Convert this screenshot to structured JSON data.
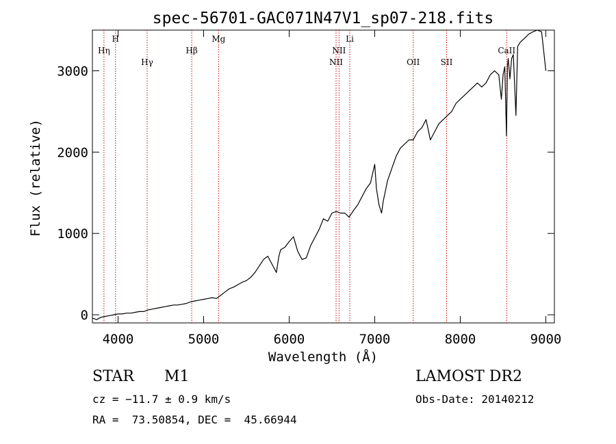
{
  "chart_data": {
    "type": "line",
    "title": "spec-56701-GAC071N47V1_sp07-218.fits",
    "xlabel": "Wavelength (Å)",
    "ylabel": "Flux (relative)",
    "xlim": [
      3700,
      9100
    ],
    "ylim": [
      -100,
      3500
    ],
    "xticks": [
      4000,
      5000,
      6000,
      7000,
      8000,
      9000
    ],
    "yticks": [
      0,
      1000,
      2000,
      3000
    ],
    "grid": false,
    "line_color": "#000000",
    "marker_color": "#cc0000",
    "series": [
      {
        "x": [
          3700,
          3750,
          3800,
          3850,
          3900,
          3950,
          4000,
          4050,
          4100,
          4150,
          4200,
          4250,
          4300,
          4350,
          4400,
          4450,
          4500,
          4550,
          4600,
          4650,
          4700,
          4750,
          4800,
          4850,
          4900,
          4950,
          5000,
          5050,
          5100,
          5150,
          5200,
          5250,
          5300,
          5350,
          5400,
          5450,
          5500,
          5550,
          5600,
          5650,
          5700,
          5750,
          5800,
          5850,
          5880,
          5900,
          5950,
          6000,
          6050,
          6100,
          6150,
          6200,
          6250,
          6300,
          6350,
          6400,
          6450,
          6500,
          6550,
          6600,
          6650,
          6700,
          6750,
          6800,
          6850,
          6900,
          6950,
          7000,
          7020,
          7050,
          7080,
          7100,
          7130,
          7150,
          7200,
          7250,
          7300,
          7350,
          7400,
          7450,
          7500,
          7550,
          7600,
          7650,
          7700,
          7750,
          7800,
          7850,
          7900,
          7950,
          8000,
          8050,
          8100,
          8150,
          8200,
          8250,
          8300,
          8350,
          8400,
          8450,
          8480,
          8500,
          8520,
          8540,
          8550,
          8560,
          8580,
          8600,
          8620,
          8650,
          8670,
          8700,
          8750,
          8800,
          8850,
          8900,
          8950,
          9000
        ],
        "y": [
          -40,
          -60,
          -30,
          -20,
          -10,
          0,
          10,
          10,
          20,
          20,
          30,
          40,
          40,
          60,
          70,
          80,
          90,
          100,
          110,
          120,
          120,
          130,
          140,
          160,
          170,
          180,
          190,
          200,
          210,
          200,
          240,
          280,
          320,
          340,
          370,
          400,
          420,
          460,
          520,
          600,
          680,
          720,
          620,
          520,
          720,
          800,
          830,
          900,
          960,
          780,
          680,
          700,
          850,
          950,
          1050,
          1180,
          1150,
          1250,
          1270,
          1250,
          1250,
          1200,
          1280,
          1350,
          1450,
          1550,
          1620,
          1850,
          1550,
          1350,
          1250,
          1400,
          1550,
          1650,
          1800,
          1950,
          2050,
          2100,
          2150,
          2150,
          2250,
          2300,
          2400,
          2150,
          2250,
          2350,
          2400,
          2450,
          2500,
          2600,
          2650,
          2700,
          2750,
          2800,
          2850,
          2800,
          2850,
          2950,
          3000,
          2950,
          2650,
          2950,
          3050,
          2200,
          3050,
          3150,
          2900,
          3150,
          3200,
          2450,
          3300,
          3350,
          3400,
          3450,
          3480,
          3500,
          3480,
          3000
        ]
      }
    ],
    "line_markers": [
      {
        "label": "Hη",
        "x": 3835,
        "row": 2
      },
      {
        "label": "H",
        "x": 3970,
        "row": 1
      },
      {
        "label": "Hγ",
        "x": 4340,
        "row": 3
      },
      {
        "label": "Hβ",
        "x": 4861,
        "row": 2
      },
      {
        "label": "Mg",
        "x": 5175,
        "row": 1
      },
      {
        "label": "NII",
        "x": 6548,
        "row": 3
      },
      {
        "label": "NII",
        "x": 6583,
        "row": 2
      },
      {
        "label": "Li",
        "x": 6708,
        "row": 1
      },
      {
        "label": "OII",
        "x": 7450,
        "row": 3
      },
      {
        "label": "SII",
        "x": 7840,
        "row": 3
      },
      {
        "label": "CaII",
        "x": 8542,
        "row": 2
      }
    ]
  },
  "info": {
    "object_type": "STAR",
    "subclass": "M1",
    "survey": "LAMOST DR2",
    "velocity": "cz = −11.7 ± 0.9 km/s",
    "obs_date": "Obs-Date: 20140212",
    "coords": "RA =  73.50854, DEC =  45.66944"
  }
}
